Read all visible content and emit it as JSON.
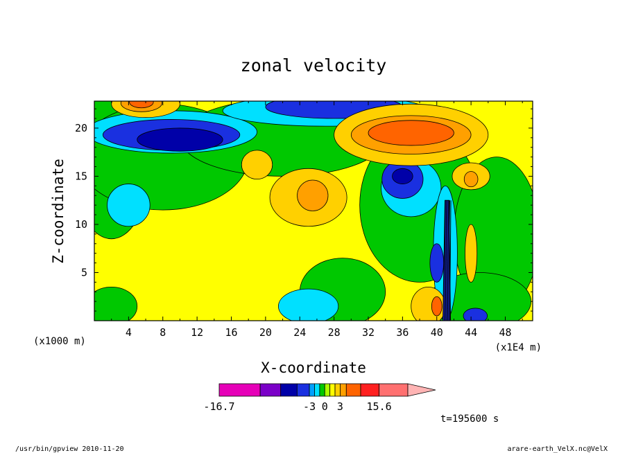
{
  "footer": {
    "left": "/usr/bin/gpview  2010-11-20",
    "right": "arare-earth_VelX.nc@VelX"
  },
  "time_label": "t=195600 s",
  "chart_data": {
    "type": "heatmap",
    "title": "zonal velocity",
    "xlabel": "X-coordinate",
    "ylabel": "Z-coordinate",
    "x_unit_left": "(x1000 m)",
    "x_unit_right": "(x1E4 m)",
    "x_ticks": [
      4,
      8,
      12,
      16,
      20,
      24,
      28,
      32,
      36,
      40,
      44,
      48
    ],
    "y_ticks": [
      5,
      10,
      15,
      20
    ],
    "xlim": [
      0,
      51.2
    ],
    "ylim": [
      0,
      22.8
    ],
    "colorbar": {
      "min": -16.7,
      "max": 15.6,
      "tick_labels": [
        "-16.7",
        "-3",
        "0",
        "3",
        "15.6"
      ],
      "levels": [
        {
          "color": "#e600b8",
          "w": 2
        },
        {
          "color": "#7b00c8",
          "w": 1
        },
        {
          "color": "#0000a8",
          "w": 0.8
        },
        {
          "color": "#1a30e0",
          "w": 0.6
        },
        {
          "color": "#00a0ff",
          "w": 0.25
        },
        {
          "color": "#00e0ff",
          "w": 0.25
        },
        {
          "color": "#00c800",
          "w": 0.25
        },
        {
          "color": "#aaff00",
          "w": 0.25
        },
        {
          "color": "#ffff00",
          "w": 0.25
        },
        {
          "color": "#ffd000",
          "w": 0.25
        },
        {
          "color": "#ffa000",
          "w": 0.3
        },
        {
          "color": "#ff6400",
          "w": 0.7
        },
        {
          "color": "#ff2020",
          "w": 0.9
        },
        {
          "color": "#ff7070",
          "w": 1.4
        }
      ],
      "arrow_color": "#ffb4b4"
    },
    "field": {
      "background": "#ffff00",
      "blobs": [
        {
          "x": 3,
          "z": 22.5,
          "rx": 5,
          "rz": 4.5,
          "color": "#00c800"
        },
        {
          "x": 2,
          "z": 14.5,
          "rx": 4,
          "rz": 6,
          "color": "#00c800"
        },
        {
          "x": 8,
          "z": 17,
          "rx": 10,
          "rz": 5.5,
          "color": "#00c800"
        },
        {
          "x": 22,
          "z": 19,
          "rx": 12,
          "rz": 4,
          "color": "#00c800"
        },
        {
          "x": 38,
          "z": 12,
          "rx": 7,
          "rz": 8,
          "color": "#00c800"
        },
        {
          "x": 47,
          "z": 9,
          "rx": 5,
          "rz": 8,
          "color": "#00c800"
        },
        {
          "x": 29,
          "z": 3,
          "rx": 5,
          "rz": 3.5,
          "color": "#00c800"
        },
        {
          "x": 45,
          "z": 2,
          "rx": 6,
          "rz": 3,
          "color": "#00c800"
        },
        {
          "x": 2,
          "z": 1.5,
          "rx": 3,
          "rz": 2,
          "color": "#00c800"
        },
        {
          "x": 9,
          "z": 19.6,
          "rx": 10,
          "rz": 2.2,
          "color": "#00e0ff"
        },
        {
          "x": 27,
          "z": 21.8,
          "rx": 12,
          "rz": 1.6,
          "color": "#00e0ff"
        },
        {
          "x": 4,
          "z": 12,
          "rx": 2.5,
          "rz": 2.2,
          "color": "#00e0ff"
        },
        {
          "x": 25,
          "z": 1.5,
          "rx": 3.5,
          "rz": 1.8,
          "color": "#00e0ff"
        },
        {
          "x": 37,
          "z": 13.8,
          "rx": 3.5,
          "rz": 3,
          "color": "#00e0ff"
        },
        {
          "x": 41,
          "z": 7,
          "rx": 1.4,
          "rz": 7,
          "color": "#00e0ff"
        },
        {
          "x": 9,
          "z": 19.3,
          "rx": 8,
          "rz": 1.6,
          "color": "#1a30e0"
        },
        {
          "x": 28,
          "z": 22.2,
          "rx": 8,
          "rz": 1.2,
          "color": "#1a30e0"
        },
        {
          "x": 36,
          "z": 14.7,
          "rx": 2.4,
          "rz": 2,
          "color": "#1a30e0"
        },
        {
          "x": 40,
          "z": 6,
          "rx": 0.8,
          "rz": 2,
          "color": "#1a30e0"
        },
        {
          "x": 10,
          "z": 18.8,
          "rx": 5,
          "rz": 1.2,
          "color": "#0000a8"
        },
        {
          "x": 36,
          "z": 15,
          "rx": 1.2,
          "rz": 0.8,
          "color": "#0000a8"
        },
        {
          "x": 44.5,
          "z": 0.5,
          "rx": 1.4,
          "rz": 0.8,
          "color": "#1a30e0"
        },
        {
          "x": 19,
          "z": 16.2,
          "rx": 1.8,
          "rz": 1.5,
          "color": "#ffd000"
        },
        {
          "x": 25,
          "z": 12.8,
          "rx": 4.5,
          "rz": 3,
          "color": "#ffd000"
        },
        {
          "x": 37,
          "z": 19.3,
          "rx": 9,
          "rz": 3.2,
          "color": "#ffd000"
        },
        {
          "x": 44,
          "z": 15,
          "rx": 2.2,
          "rz": 1.4,
          "color": "#ffd000"
        },
        {
          "x": 39,
          "z": 1.5,
          "rx": 2,
          "rz": 2,
          "color": "#ffd000"
        },
        {
          "x": 6,
          "z": 22.5,
          "rx": 4,
          "rz": 1.4,
          "color": "#ffd000"
        },
        {
          "x": 25.5,
          "z": 13,
          "rx": 1.8,
          "rz": 1.6,
          "color": "#ffa000"
        },
        {
          "x": 37,
          "z": 19.3,
          "rx": 7,
          "rz": 2,
          "color": "#ffa000"
        },
        {
          "x": 44,
          "z": 14.7,
          "rx": 0.8,
          "rz": 0.8,
          "color": "#ffa000"
        },
        {
          "x": 5.5,
          "z": 22.6,
          "rx": 2.4,
          "rz": 0.9,
          "color": "#ffa000"
        },
        {
          "x": 37,
          "z": 19.5,
          "rx": 5,
          "rz": 1.3,
          "color": "#ff6400"
        },
        {
          "x": 5.5,
          "z": 22.7,
          "rx": 1.4,
          "rz": 0.6,
          "color": "#ff6400"
        },
        {
          "x": 40,
          "z": 1.5,
          "rx": 0.6,
          "rz": 1,
          "color": "#ff6400"
        },
        {
          "x": 44,
          "z": 7,
          "rx": 0.7,
          "rz": 3,
          "color": "#ffd000"
        }
      ],
      "front": {
        "x": 41.2,
        "z0": 0,
        "z1": 12.5
      }
    }
  }
}
